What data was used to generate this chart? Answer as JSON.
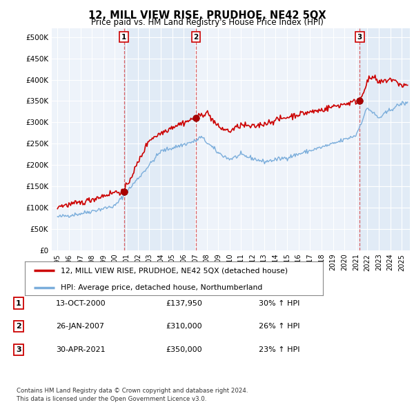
{
  "title": "12, MILL VIEW RISE, PRUDHOE, NE42 5QX",
  "subtitle": "Price paid vs. HM Land Registry's House Price Index (HPI)",
  "ylabel_ticks": [
    "£0",
    "£50K",
    "£100K",
    "£150K",
    "£200K",
    "£250K",
    "£300K",
    "£350K",
    "£400K",
    "£450K",
    "£500K"
  ],
  "ytick_values": [
    0,
    50000,
    100000,
    150000,
    200000,
    250000,
    300000,
    350000,
    400000,
    450000,
    500000
  ],
  "ylim": [
    0,
    520000
  ],
  "transactions": [
    {
      "num": 1,
      "date": "2000-10-13",
      "price": 137950,
      "hpi_pct": "30%",
      "x_year": 2000.79
    },
    {
      "num": 2,
      "date": "2007-01-26",
      "price": 310000,
      "hpi_pct": "26%",
      "x_year": 2007.07
    },
    {
      "num": 3,
      "date": "2021-04-30",
      "price": 350000,
      "hpi_pct": "23%",
      "x_year": 2021.33
    }
  ],
  "vline_color": "#cc0000",
  "vline_alpha": 0.6,
  "shade_color": "#dce8f5",
  "hpi_line_color": "#7aaddb",
  "price_line_color": "#cc0000",
  "dot_color": "#aa0000",
  "dot_size": 7,
  "legend_label_red": "12, MILL VIEW RISE, PRUDHOE, NE42 5QX (detached house)",
  "legend_label_blue": "HPI: Average price, detached house, Northumberland",
  "table_rows": [
    [
      "1",
      "13-OCT-2000",
      "£137,950",
      "30% ↑ HPI"
    ],
    [
      "2",
      "26-JAN-2007",
      "£310,000",
      "26% ↑ HPI"
    ],
    [
      "3",
      "30-APR-2021",
      "£350,000",
      "23% ↑ HPI"
    ]
  ],
  "footnote1": "Contains HM Land Registry data © Crown copyright and database right 2024.",
  "footnote2": "This data is licensed under the Open Government Licence v3.0.",
  "background_color": "#ffffff",
  "plot_bg_color": "#eef3fa",
  "grid_color": "#ffffff",
  "title_fontsize": 10.5,
  "subtitle_fontsize": 8.5,
  "tick_fontsize": 7.5,
  "xtick_years": [
    1995,
    1996,
    1997,
    1998,
    1999,
    2000,
    2001,
    2002,
    2003,
    2004,
    2005,
    2006,
    2007,
    2008,
    2009,
    2010,
    2011,
    2012,
    2013,
    2014,
    2015,
    2016,
    2017,
    2018,
    2019,
    2020,
    2021,
    2022,
    2023,
    2024,
    2025
  ],
  "xlim": [
    1994.5,
    2025.7
  ]
}
